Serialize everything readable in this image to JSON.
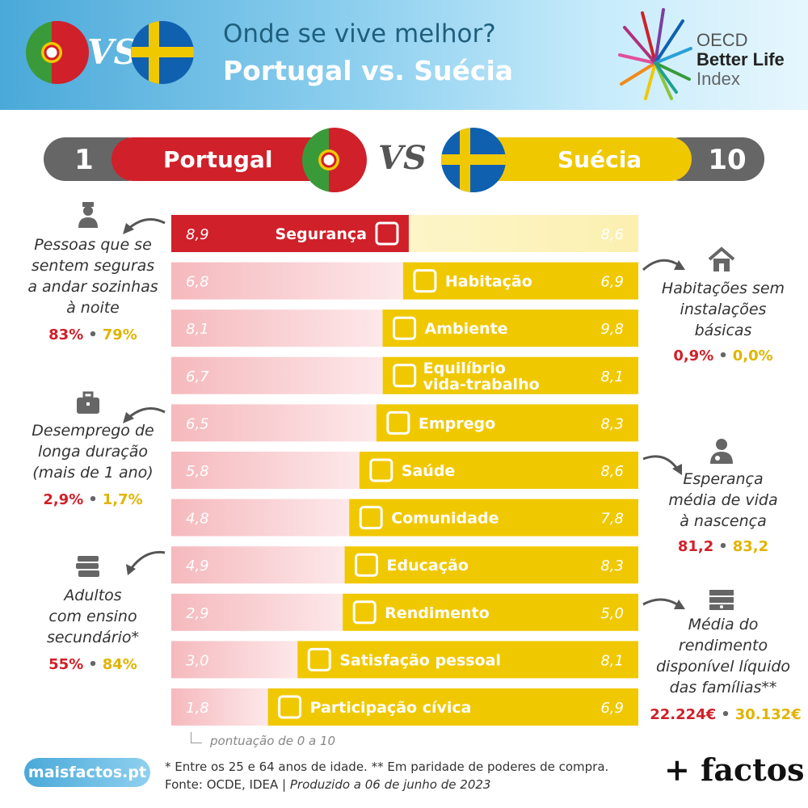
{
  "header": {
    "title_line1": "Onde se vive melhor?",
    "title_line2": "Portugal vs. Suécia",
    "vs_text": "VS",
    "oecd_line1": "OECD",
    "oecd_line2": "Better Life",
    "oecd_line3": "Index"
  },
  "ranking": {
    "left_rank": "1",
    "left_country": "Portugal",
    "right_rank": "10",
    "right_country": "Suécia",
    "vs_text": "VS"
  },
  "colors": {
    "portugal": "#d0202a",
    "sweden": "#f0c800",
    "bg_bar_light_pt": "#f5b9bd",
    "bg_bar_light_se": "#fbf0b0"
  },
  "chart_data": {
    "type": "bar",
    "subtype": "diverging-comparison",
    "scale_note": "pontuação de 0 a 10",
    "series": [
      {
        "name": "Portugal",
        "values": [
          8.9,
          6.8,
          8.1,
          6.7,
          6.5,
          5.8,
          4.8,
          4.9,
          2.9,
          3.0,
          1.8
        ]
      },
      {
        "name": "Suécia",
        "values": [
          8.6,
          6.9,
          9.8,
          8.1,
          8.3,
          8.6,
          7.8,
          8.3,
          5.0,
          8.1,
          6.9
        ]
      }
    ],
    "categories": [
      {
        "label": "Segurança",
        "icon": "police-officer-icon",
        "pt_label": "8,9",
        "se_label": "8,6"
      },
      {
        "label": "Habitação",
        "icon": "house-icon",
        "pt_label": "6,8",
        "se_label": "6,9"
      },
      {
        "label": "Ambiente",
        "icon": "tree-icon",
        "pt_label": "8,1",
        "se_label": "9,8"
      },
      {
        "label": "Equilíbrio vida-trabalho",
        "label_lines": [
          "Equilíbrio",
          "vida-trabalho"
        ],
        "icon": "work-life-icon",
        "pt_label": "6,7",
        "se_label": "8,1"
      },
      {
        "label": "Emprego",
        "icon": "briefcase-icon",
        "pt_label": "6,5",
        "se_label": "8,3"
      },
      {
        "label": "Saúde",
        "icon": "doctor-icon",
        "pt_label": "5,8",
        "se_label": "8,6"
      },
      {
        "label": "Comunidade",
        "icon": "people-icon",
        "pt_label": "4,8",
        "se_label": "7,8"
      },
      {
        "label": "Educação",
        "icon": "books-icon",
        "pt_label": "4,9",
        "se_label": "8,3"
      },
      {
        "label": "Rendimento",
        "icon": "money-icon",
        "pt_label": "2,9",
        "se_label": "5,0"
      },
      {
        "label": "Satisfação pessoal",
        "icon": "happy-person-icon",
        "pt_label": "3,0",
        "se_label": "8,1"
      },
      {
        "label": "Participação cívica",
        "icon": "ballot-box-icon",
        "pt_label": "1,8",
        "se_label": "6,9"
      }
    ],
    "ylim": [
      0,
      10
    ]
  },
  "notes": {
    "seguranca": {
      "lines": [
        "Pessoas que se",
        "sentem seguras",
        "a andar sozinhas",
        "à noite"
      ],
      "pt": "83%",
      "se": "79%",
      "icon": "police-officer-icon"
    },
    "emprego": {
      "lines": [
        "Desemprego de",
        "longa duração",
        "(mais de 1 ano)"
      ],
      "pt": "2,9%",
      "se": "1,7%",
      "icon": "briefcase-icon"
    },
    "educacao": {
      "lines": [
        "Adultos",
        "com ensino",
        "secundário*"
      ],
      "pt": "55%",
      "se": "84%",
      "icon": "books-icon"
    },
    "habitacao": {
      "lines": [
        "Habitações sem",
        "instalações",
        "básicas"
      ],
      "pt": "0,9%",
      "se": "0,0%",
      "icon": "house-icon"
    },
    "saude": {
      "lines": [
        "Esperança",
        "média de vida",
        "à nascença"
      ],
      "pt": "81,2",
      "se": "83,2",
      "icon": "doctor-icon"
    },
    "rendimento": {
      "lines": [
        "Média do",
        "rendimento",
        "disponível líquido",
        "das famílias**"
      ],
      "pt": "22.224€",
      "se": "30.132€",
      "icon": "money-icon"
    },
    "separator": "•"
  },
  "footer": {
    "site": "maisfactos.pt",
    "line1": "* Entre os 25 e 64 anos de idade. ** Em paridade de poderes de compra.",
    "line2_source": "Fonte: OCDE, IDEA | ",
    "line2_produced": "Produzido a 06 de junho de 2023",
    "brand": "+ factos"
  }
}
